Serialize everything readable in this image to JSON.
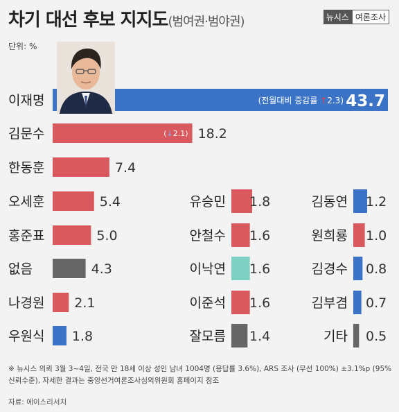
{
  "title": "차기 대선 후보 지지도",
  "subtitle": "(범여권·범야권)",
  "brand": {
    "name": "뉴시스",
    "tag": "여론조사"
  },
  "unit_label": "단위: %",
  "chart_data": {
    "type": "bar",
    "orientation": "horizontal",
    "title": "차기 대선 후보 지지도(범여권·범야권)",
    "unit": "%",
    "xlim": [
      0,
      43.7
    ],
    "groups": [
      {
        "name": "main",
        "bars": [
          {
            "label": "이재명",
            "value": 43.7,
            "color": "#3b73c6",
            "annotation": "(전월대비 증감률",
            "change_dir": "up",
            "change": "2.3)"
          },
          {
            "label": "김문수",
            "value": 18.2,
            "color": "#d85a5e",
            "annotation": "(",
            "change_dir": "down",
            "change": "2.1)"
          },
          {
            "label": "한동훈",
            "value": 7.4,
            "color": "#d85a5e"
          },
          {
            "label": "오세훈",
            "value": 5.4,
            "color": "#d85a5e"
          },
          {
            "label": "홍준표",
            "value": 5.0,
            "color": "#d85a5e"
          },
          {
            "label": "없음",
            "value": 4.3,
            "color": "#666666"
          },
          {
            "label": "나경원",
            "value": 2.1,
            "color": "#d85a5e"
          },
          {
            "label": "우원식",
            "value": 1.8,
            "color": "#3b73c6"
          }
        ]
      },
      {
        "name": "middle",
        "bars": [
          {
            "label": "유승민",
            "value": 1.8,
            "color": "#d85a5e"
          },
          {
            "label": "안철수",
            "value": 1.6,
            "color": "#d85a5e"
          },
          {
            "label": "이낙연",
            "value": 1.6,
            "color": "#7fd1c4"
          },
          {
            "label": "이준석",
            "value": 1.6,
            "color": "#d85a5e"
          },
          {
            "label": "잘모름",
            "value": 1.4,
            "color": "#666666"
          }
        ]
      },
      {
        "name": "right",
        "bars": [
          {
            "label": "김동연",
            "value": 1.2,
            "color": "#3b73c6"
          },
          {
            "label": "원희룡",
            "value": 1.0,
            "color": "#d85a5e"
          },
          {
            "label": "김경수",
            "value": 0.8,
            "color": "#3b73c6"
          },
          {
            "label": "김부겸",
            "value": 0.7,
            "color": "#3b73c6"
          },
          {
            "label": "기타",
            "value": 0.5,
            "color": "#666666"
          }
        ]
      }
    ]
  },
  "footnote": "※ 뉴시스 의뢰 3월 3~4일, 전국 만 18세 이상 성인 남녀 1004명 (응답률 3.6%), ARS 조사 (무선 100%) ±3.1%p (95% 신뢰수준), 자세한 결과는 중앙선거여론조사심의위원회 홈페이지 참조",
  "source": "자료: 에이스리서치"
}
